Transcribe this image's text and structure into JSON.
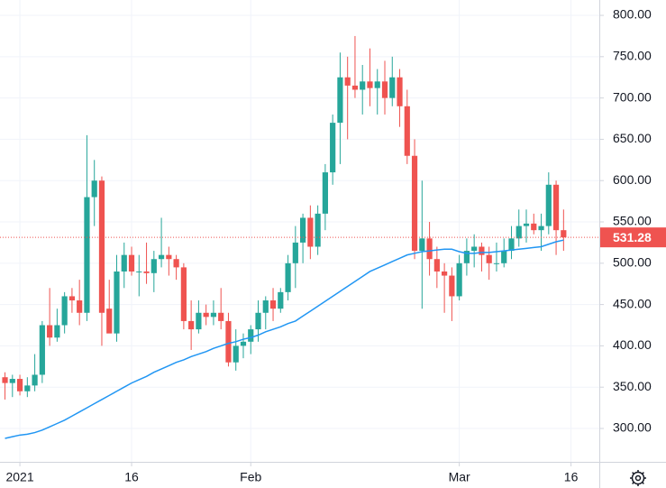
{
  "chart_data": {
    "type": "candlestick",
    "open": [
      362,
      355,
      360,
      345,
      352,
      365,
      425,
      410,
      425,
      460,
      455,
      440,
      580,
      600,
      445,
      415,
      490,
      510,
      490,
      490,
      488,
      505,
      510,
      505,
      495,
      430,
      420,
      440,
      435,
      440,
      430,
      380,
      400,
      405,
      420,
      440,
      455,
      445,
      465,
      500,
      525,
      555,
      520,
      560,
      610,
      670,
      725,
      715,
      710,
      720,
      712,
      720,
      700,
      725,
      690,
      630,
      515,
      530,
      505,
      490,
      485,
      460,
      500,
      515,
      520,
      510,
      500,
      500,
      515,
      530,
      545,
      548,
      540,
      545,
      595,
      540
    ],
    "high": [
      368,
      365,
      365,
      362,
      390,
      430,
      470,
      445,
      465,
      470,
      480,
      655,
      625,
      605,
      480,
      510,
      525,
      520,
      510,
      525,
      515,
      555,
      520,
      510,
      500,
      455,
      455,
      450,
      455,
      470,
      440,
      420,
      415,
      425,
      455,
      460,
      470,
      470,
      510,
      545,
      560,
      570,
      570,
      620,
      680,
      755,
      750,
      775,
      740,
      760,
      735,
      745,
      750,
      735,
      710,
      650,
      600,
      550,
      520,
      500,
      495,
      510,
      530,
      535,
      525,
      520,
      525,
      530,
      545,
      565,
      565,
      560,
      560,
      610,
      600,
      565
    ],
    "low": [
      335,
      338,
      340,
      338,
      345,
      355,
      400,
      405,
      415,
      440,
      425,
      430,
      545,
      400,
      420,
      405,
      470,
      485,
      460,
      475,
      465,
      495,
      485,
      480,
      420,
      395,
      415,
      425,
      425,
      420,
      375,
      370,
      385,
      390,
      405,
      420,
      430,
      440,
      455,
      470,
      500,
      505,
      510,
      540,
      595,
      620,
      650,
      700,
      680,
      690,
      680,
      680,
      690,
      665,
      620,
      505,
      445,
      485,
      470,
      440,
      430,
      455,
      485,
      495,
      490,
      480,
      490,
      495,
      505,
      520,
      525,
      535,
      515,
      535,
      510,
      515
    ],
    "close": [
      355,
      360,
      345,
      352,
      365,
      425,
      410,
      425,
      460,
      455,
      440,
      580,
      600,
      440,
      415,
      490,
      510,
      490,
      490,
      488,
      505,
      510,
      505,
      495,
      430,
      420,
      440,
      435,
      440,
      430,
      380,
      400,
      405,
      420,
      440,
      455,
      445,
      465,
      500,
      525,
      555,
      520,
      560,
      610,
      670,
      725,
      715,
      710,
      720,
      712,
      720,
      700,
      725,
      690,
      630,
      515,
      530,
      505,
      490,
      485,
      460,
      500,
      515,
      520,
      510,
      500,
      500,
      515,
      530,
      545,
      548,
      540,
      545,
      595,
      540,
      531.28
    ],
    "up_color": "#26a69a",
    "down_color": "#ef5350",
    "moving_average": {
      "color": "#2196f3",
      "values": [
        288,
        290,
        292,
        293,
        295,
        298,
        302,
        306,
        310,
        315,
        320,
        325,
        330,
        335,
        340,
        345,
        350,
        355,
        359,
        363,
        368,
        372,
        376,
        380,
        383,
        387,
        390,
        393,
        397,
        400,
        403,
        405,
        408,
        410,
        413,
        417,
        420,
        423,
        427,
        430,
        436,
        442,
        448,
        454,
        460,
        466,
        472,
        478,
        484,
        490,
        494,
        498,
        502,
        506,
        510,
        512,
        514,
        515,
        516,
        517,
        517,
        514,
        512,
        512,
        513,
        513,
        514,
        515,
        516,
        517,
        518,
        519,
        520,
        523,
        526,
        528
      ]
    },
    "ylim": [
      259.6,
      818.6
    ],
    "yticks": [
      {
        "value": 300,
        "label": "300.00"
      },
      {
        "value": 350,
        "label": "350.00"
      },
      {
        "value": 400,
        "label": "400.00"
      },
      {
        "value": 450,
        "label": "450.00"
      },
      {
        "value": 500,
        "label": "500.00"
      },
      {
        "value": 550,
        "label": "550.00"
      },
      {
        "value": 600,
        "label": "600.00"
      },
      {
        "value": 650,
        "label": "650.00"
      },
      {
        "value": 700,
        "label": "700.00"
      },
      {
        "value": 750,
        "label": "750.00"
      },
      {
        "value": 800,
        "label": "800.00"
      }
    ],
    "xlim": [
      -0.67,
      79.8
    ],
    "xticks": [
      {
        "value": 2,
        "label": "2021"
      },
      {
        "value": 17,
        "label": "16"
      },
      {
        "value": 33,
        "label": "Feb"
      },
      {
        "value": 61,
        "label": "Mar"
      },
      {
        "value": 76,
        "label": "16"
      }
    ],
    "grid": true
  }
}
